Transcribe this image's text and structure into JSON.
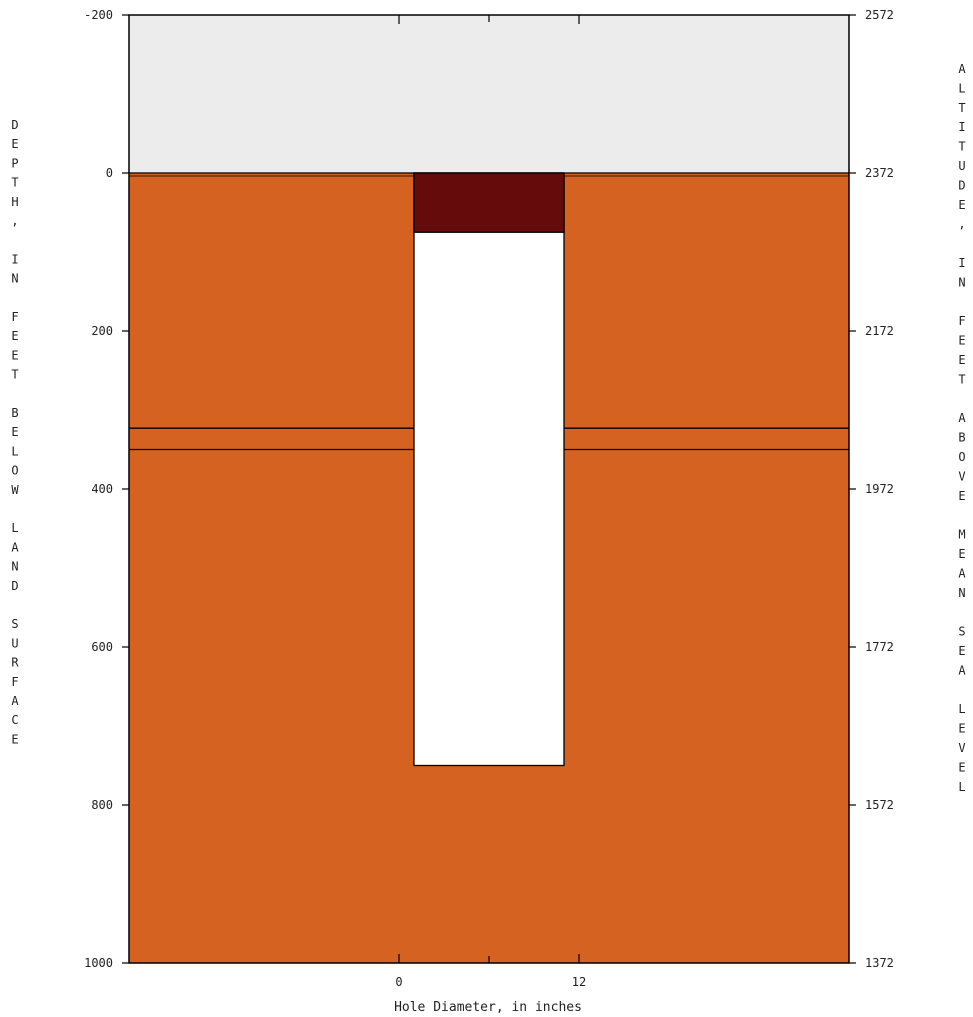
{
  "chart_data": {
    "type": "well-construction-diagram",
    "depth_range": [
      -200,
      1000
    ],
    "altitude_range": [
      2572,
      1372
    ],
    "diameter_range_inches": [
      -18,
      30
    ],
    "left_ticks": [
      "-200",
      "0",
      "200",
      "400",
      "600",
      "800",
      "1000"
    ],
    "left_tick_values": [
      -200,
      0,
      200,
      400,
      600,
      800,
      1000
    ],
    "right_ticks": [
      "2572",
      "2372",
      "2172",
      "1972",
      "1772",
      "1572",
      "1372"
    ],
    "bottom_ticks": [
      "0",
      "12"
    ],
    "bottom_tick_values": [
      0,
      12
    ],
    "bottom_minor_tick_values": [
      6
    ],
    "top_tick_values": [
      0,
      12
    ],
    "top_minor_tick_values": [
      6
    ],
    "xlabel": "Hole Diameter, in inches",
    "ylabel_left": "DEPTH, IN FEET BELOW LAND SURFACE",
    "ylabel_right": "ALTITUDE, IN FEET ABOVE MEAN SEA LEVEL",
    "lithology_layers": [
      {
        "top": -200,
        "bottom": 0,
        "color": "#ececec"
      },
      {
        "top": 0,
        "bottom": 323,
        "color": "#d66222"
      },
      {
        "top": 323,
        "bottom": 350,
        "color": "#d66222"
      },
      {
        "top": 350,
        "bottom": 1000,
        "color": "#d66222"
      }
    ],
    "borehole": {
      "top": 0,
      "bottom": 750,
      "diameter_left": 1,
      "diameter_right": 11
    },
    "surface_casing": {
      "top": 0,
      "bottom": 75,
      "diameter_left": 1,
      "diameter_right": 11,
      "color": "#660b0b"
    }
  }
}
